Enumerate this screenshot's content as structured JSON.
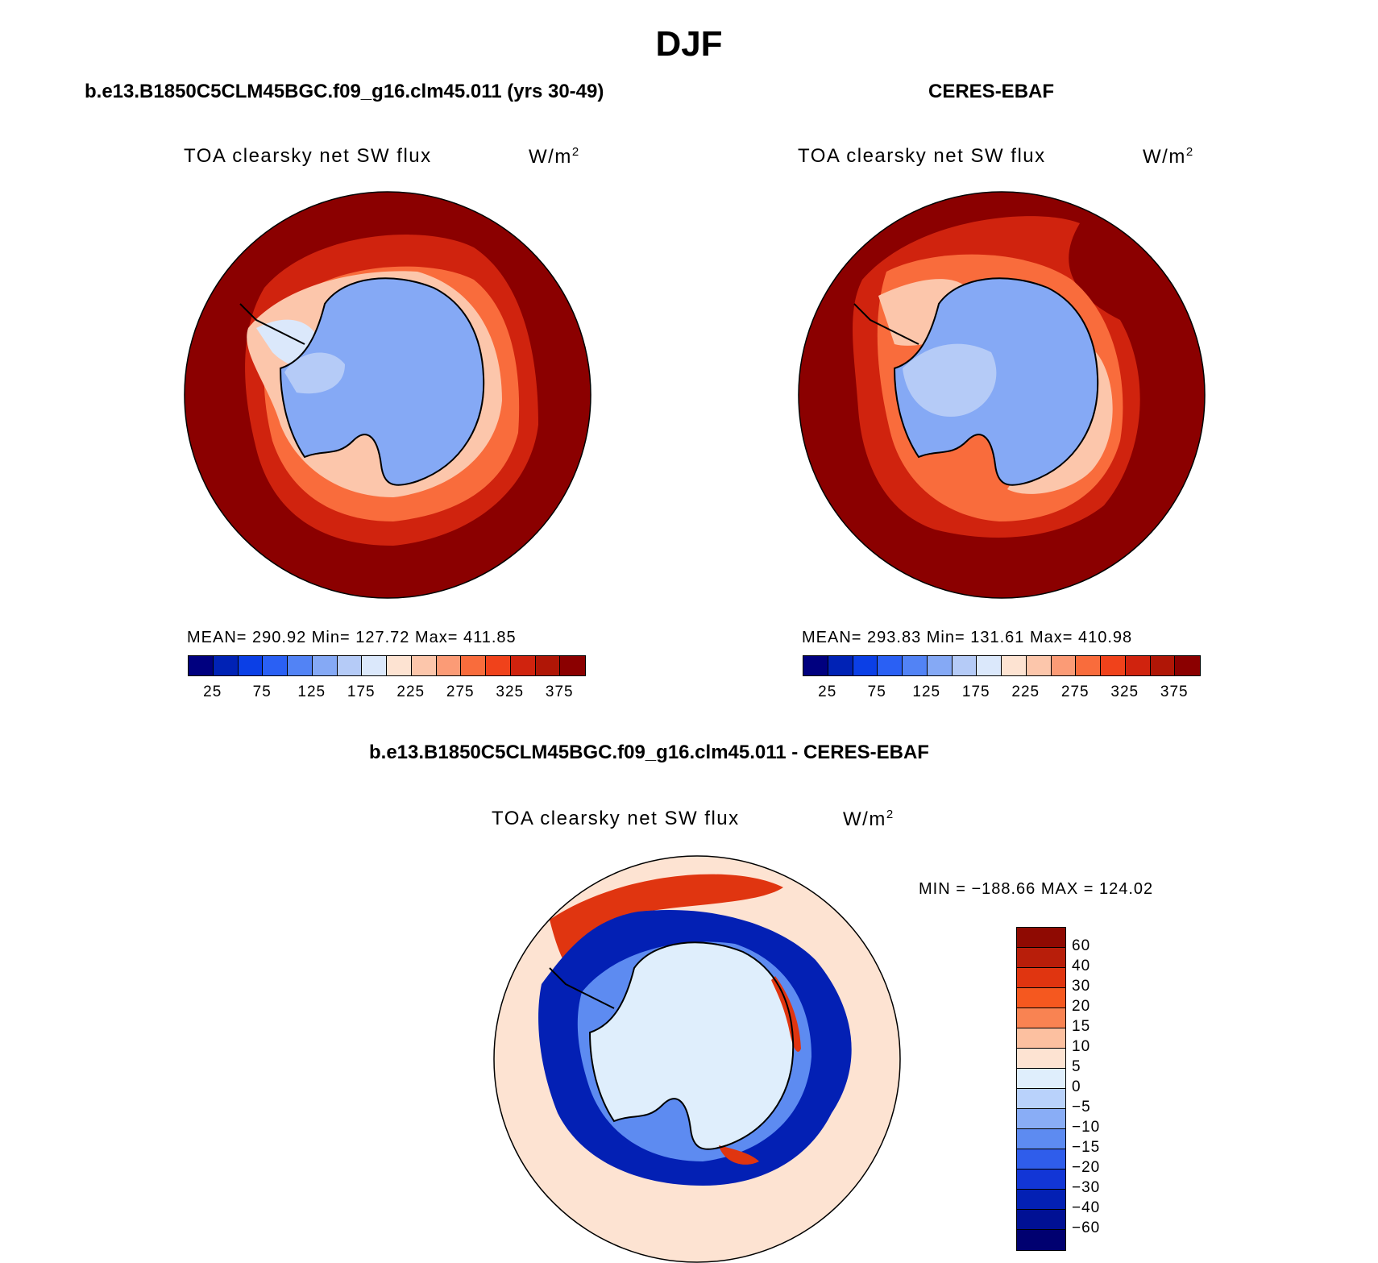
{
  "title": "DJF",
  "panels": [
    {
      "case": "b.e13.B1850C5CLM45BGC.f09_g16.clm45.011 (yrs 30-49)",
      "variable": "TOA clearsky net SW flux",
      "units": "W/m",
      "units_exp": "2",
      "stats": "MEAN= 290.92   Min= 127.72   Max= 411.85"
    },
    {
      "case": "CERES-EBAF",
      "variable": "TOA clearsky net SW flux",
      "units": "W/m",
      "units_exp": "2",
      "stats": "MEAN= 293.83   Min= 131.61   Max= 410.98"
    }
  ],
  "colorbar": {
    "labels": [
      "25",
      "75",
      "125",
      "175",
      "225",
      "275",
      "325",
      "375"
    ],
    "colors": [
      "#00007f",
      "#0022b5",
      "#0b3fe6",
      "#2a60f4",
      "#5283f5",
      "#85a9f5",
      "#b5cbf7",
      "#dbe8fb",
      "#fde3d2",
      "#fcc6ab",
      "#fb9b76",
      "#f96c3c",
      "#f0421b",
      "#d0230e",
      "#b01606",
      "#8b0000"
    ]
  },
  "diff_panel": {
    "case": "b.e13.B1850C5CLM45BGC.f09_g16.clm45.011 - CERES-EBAF",
    "variable": "TOA clearsky net SW flux",
    "units": "W/m",
    "units_exp": "2",
    "minmax": "MIN = −188.66 MAX = 124.02",
    "colorbar_labels": [
      "60",
      "40",
      "30",
      "20",
      "15",
      "10",
      "5",
      "0",
      "−5",
      "−10",
      "−15",
      "−20",
      "−30",
      "−40",
      "−60"
    ],
    "colorbar_colors": [
      "#8f0a02",
      "#b81e0a",
      "#e03510",
      "#f5581f",
      "#f98352",
      "#fcc0a0",
      "#fde3d2",
      "#dfeefc",
      "#b9d2fb",
      "#89adf6",
      "#5d8bf1",
      "#2f5deb",
      "#1236d6",
      "#0320b4",
      "#001094",
      "#000070"
    ]
  },
  "map_colors": {
    "ocean_high": "#8b0000",
    "ocean_mid": "#d0230e",
    "ocean_low": "#f96c3c",
    "ice_edge": "#fcc6ab",
    "ice_pale": "#dbe8fb",
    "land": "#85a9f5",
    "land_pale": "#b5cbf7",
    "diff_bg": "#fde3d2",
    "diff_red": "#e03510",
    "diff_blue": "#0320b4",
    "diff_mid": "#5d8bf1",
    "diff_land": "#dfeefc"
  }
}
